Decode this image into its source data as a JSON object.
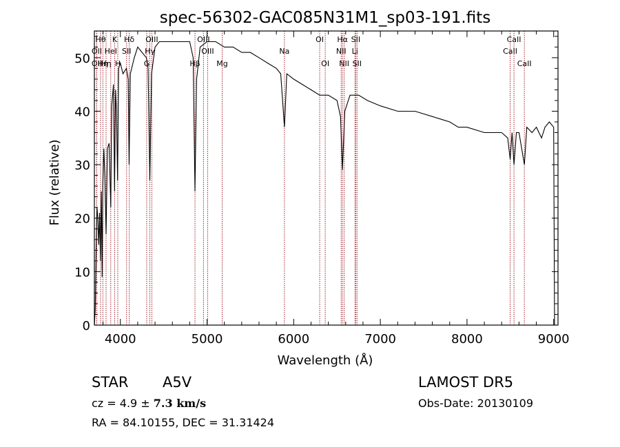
{
  "chart_data": {
    "type": "line",
    "title": "spec-56302-GAC085N31M1_sp03-191.fits",
    "xlabel": "Wavelength (Å)",
    "ylabel": "Flux (relative)",
    "xlim": [
      3700,
      9050
    ],
    "ylim": [
      0,
      55
    ],
    "xticks": [
      4000,
      5000,
      6000,
      7000,
      8000,
      9000
    ],
    "yticks": [
      0,
      10,
      20,
      30,
      40,
      50
    ],
    "grid": false,
    "series": [
      {
        "points": [
          [
            3700,
            0
          ],
          [
            3710,
            3
          ],
          [
            3720,
            14
          ],
          [
            3730,
            22
          ],
          [
            3740,
            20
          ],
          [
            3750,
            15
          ],
          [
            3760,
            21
          ],
          [
            3770,
            12
          ],
          [
            3780,
            25
          ],
          [
            3790,
            9
          ],
          [
            3797,
            26
          ],
          [
            3810,
            33
          ],
          [
            3820,
            28
          ],
          [
            3835,
            17
          ],
          [
            3850,
            33
          ],
          [
            3870,
            34
          ],
          [
            3889,
            22
          ],
          [
            3900,
            41
          ],
          [
            3920,
            45
          ],
          [
            3933,
            25
          ],
          [
            3945,
            44
          ],
          [
            3955,
            40
          ],
          [
            3968,
            27
          ],
          [
            3980,
            48
          ],
          [
            4000,
            49
          ],
          [
            4030,
            47
          ],
          [
            4070,
            48
          ],
          [
            4090,
            46
          ],
          [
            4101,
            30
          ],
          [
            4115,
            47
          ],
          [
            4160,
            50
          ],
          [
            4200,
            52
          ],
          [
            4250,
            51
          ],
          [
            4300,
            50
          ],
          [
            4320,
            48
          ],
          [
            4340,
            27
          ],
          [
            4360,
            47
          ],
          [
            4400,
            52
          ],
          [
            4450,
            53
          ],
          [
            4500,
            53
          ],
          [
            4600,
            53
          ],
          [
            4700,
            53
          ],
          [
            4800,
            53
          ],
          [
            4840,
            50
          ],
          [
            4861,
            25
          ],
          [
            4880,
            46
          ],
          [
            4920,
            52
          ],
          [
            5000,
            53
          ],
          [
            5100,
            53
          ],
          [
            5200,
            52
          ],
          [
            5300,
            52
          ],
          [
            5400,
            51
          ],
          [
            5500,
            51
          ],
          [
            5600,
            50
          ],
          [
            5700,
            49
          ],
          [
            5800,
            48
          ],
          [
            5850,
            47
          ],
          [
            5893,
            37
          ],
          [
            5920,
            47
          ],
          [
            6000,
            46
          ],
          [
            6100,
            45
          ],
          [
            6200,
            44
          ],
          [
            6300,
            43
          ],
          [
            6400,
            43
          ],
          [
            6500,
            42
          ],
          [
            6540,
            39
          ],
          [
            6563,
            29
          ],
          [
            6590,
            40
          ],
          [
            6650,
            43
          ],
          [
            6750,
            43
          ],
          [
            6850,
            42
          ],
          [
            7000,
            41
          ],
          [
            7200,
            40
          ],
          [
            7400,
            40
          ],
          [
            7600,
            39
          ],
          [
            7800,
            38
          ],
          [
            7900,
            37
          ],
          [
            8000,
            37
          ],
          [
            8200,
            36
          ],
          [
            8400,
            36
          ],
          [
            8470,
            35
          ],
          [
            8498,
            31
          ],
          [
            8520,
            36
          ],
          [
            8542,
            30
          ],
          [
            8570,
            36
          ],
          [
            8600,
            36
          ],
          [
            8662,
            30
          ],
          [
            8690,
            37
          ],
          [
            8750,
            36
          ],
          [
            8800,
            37
          ],
          [
            8860,
            35
          ],
          [
            8900,
            37
          ],
          [
            8950,
            38
          ],
          [
            9000,
            37
          ],
          [
            9010,
            0
          ]
        ]
      }
    ],
    "lines": [
      {
        "x": 3771,
        "label": "Hθ",
        "row": 1
      },
      {
        "x": 3798,
        "label": "Hη",
        "row": 3
      },
      {
        "x": 3727,
        "label": "OII",
        "row": 2
      },
      {
        "x": 3727,
        "label": "OII",
        "row": 3
      },
      {
        "x": 3835,
        "label": "Hη",
        "row": 3
      },
      {
        "x": 3889,
        "label": "HeI",
        "row": 2
      },
      {
        "x": 3934,
        "label": "K",
        "row": 1
      },
      {
        "x": 3970,
        "label": "H",
        "row": 3
      },
      {
        "x": 4102,
        "label": "Hδ",
        "row": 1
      },
      {
        "x": 4072,
        "label": "SII",
        "row": 2
      },
      {
        "x": 4340,
        "label": "Hγ",
        "row": 2
      },
      {
        "x": 4363,
        "label": "OIII",
        "row": 1
      },
      {
        "x": 4304,
        "label": "G",
        "row": 3
      },
      {
        "x": 4861,
        "label": "Hβ",
        "row": 3
      },
      {
        "x": 4959,
        "label": "OIII",
        "row": 1
      },
      {
        "x": 5007,
        "label": "OIII",
        "row": 2
      },
      {
        "x": 5175,
        "label": "Mg",
        "row": 3
      },
      {
        "x": 5893,
        "label": "Na",
        "row": 2
      },
      {
        "x": 6300,
        "label": "OI",
        "row": 1
      },
      {
        "x": 6364,
        "label": "OI",
        "row": 3
      },
      {
        "x": 6563,
        "label": "Hα",
        "row": 1
      },
      {
        "x": 6548,
        "label": "NII",
        "row": 2
      },
      {
        "x": 6583,
        "label": "NII",
        "row": 3
      },
      {
        "x": 6707,
        "label": "Li",
        "row": 2
      },
      {
        "x": 6716,
        "label": "SII",
        "row": 1
      },
      {
        "x": 6731,
        "label": "SII",
        "row": 3
      },
      {
        "x": 8498,
        "label": "CaII",
        "row": 2
      },
      {
        "x": 8542,
        "label": "CaII",
        "row": 1
      },
      {
        "x": 8662,
        "label": "CaII",
        "row": 3
      }
    ]
  },
  "info": {
    "class": "STAR",
    "subclass": "A5V",
    "survey": "LAMOST DR5",
    "cz_prefix": "cz = 4.9 ± ",
    "cz_error": "7.3 km/s",
    "obs_date": "Obs-Date: 20130109",
    "coords": "RA =  84.10155, DEC =  31.31424"
  },
  "colors": {
    "line_marker": "#a0202a",
    "spectrum": "#000000"
  }
}
